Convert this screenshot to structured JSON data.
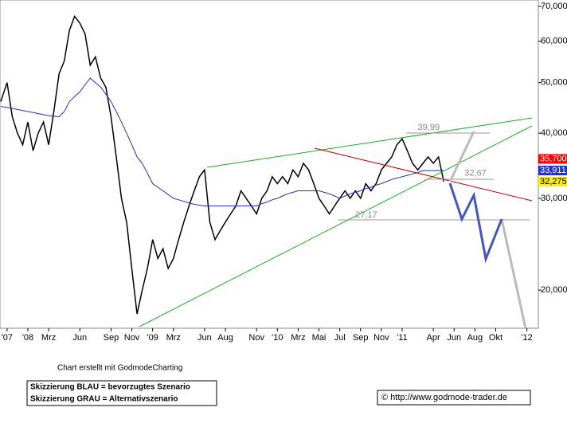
{
  "chart_data": {
    "type": "line",
    "log_scale": true,
    "x": [
      -2.6,
      -2,
      -1.5,
      -1,
      -0.5,
      0,
      0.5,
      1,
      1.5,
      2,
      2.5,
      3,
      3.5,
      4,
      4.5,
      5,
      5.5,
      6,
      6.5,
      7,
      7.5,
      8,
      8.5,
      9,
      9.5,
      10,
      10.5,
      11,
      11.5,
      12,
      12.5,
      13,
      13.5,
      14,
      14.5,
      15,
      15.5,
      16,
      16.5,
      17,
      17.5,
      18,
      18.5,
      19,
      19.5,
      20,
      20.5,
      21,
      21.5,
      22,
      22.5,
      23,
      23.5,
      24,
      24.5,
      25,
      25.5,
      26,
      26.5,
      27,
      27.5,
      28,
      28.5,
      29,
      29.5,
      30,
      30.5,
      31,
      31.5,
      32,
      32.5,
      33,
      33.5,
      34,
      34.5,
      35,
      35.5,
      36,
      36.5,
      37,
      37.5,
      38,
      38.5,
      39,
      39.5,
      40
    ],
    "series": [
      {
        "color": "#000000",
        "values": [
          46,
          50,
          43,
          40,
          38,
          42,
          37,
          40,
          42,
          38,
          44,
          52,
          55,
          63,
          67,
          65,
          62,
          54,
          56,
          51,
          49,
          43,
          36,
          30,
          27,
          22,
          18,
          20,
          22,
          25,
          23,
          24,
          22,
          23,
          25,
          27,
          29,
          31,
          33,
          34,
          27,
          25,
          26,
          27,
          28,
          29,
          31,
          30,
          29,
          28,
          30,
          31,
          33,
          32,
          33,
          32,
          34,
          33,
          35,
          34,
          32,
          30,
          29,
          28,
          29,
          30,
          31,
          30,
          31,
          30,
          32,
          31,
          32,
          34,
          35,
          36,
          38,
          39,
          37,
          35,
          34,
          35,
          36,
          35,
          36,
          32.3
        ]
      },
      {
        "color": "#2233aa",
        "values": [
          45,
          44.8,
          44.6,
          44.4,
          44.2,
          44,
          43.8,
          43.6,
          43.4,
          43.2,
          43.1,
          43,
          44,
          46,
          47,
          48,
          49.5,
          51,
          50,
          49,
          47.5,
          46,
          44,
          42,
          40,
          38,
          36,
          35,
          33.5,
          32,
          31.5,
          31,
          30.5,
          30,
          29.8,
          29.6,
          29.4,
          29.2,
          29.1,
          29,
          29,
          29,
          29,
          29,
          29,
          29,
          29,
          29,
          29,
          29,
          29.3,
          29.5,
          29.8,
          30,
          30.3,
          30.6,
          30.8,
          31,
          31,
          31,
          31,
          31,
          30.8,
          30.6,
          30.3,
          30,
          30.3,
          30.6,
          30.8,
          31,
          31.3,
          31.5,
          31.8,
          32,
          32.3,
          32.6,
          32.8,
          33,
          33.2,
          33.4,
          33.6,
          33.9,
          33.9,
          33.9,
          33.9,
          33.9
        ]
      }
    ],
    "xlim": [
      -2.68,
      49.1
    ],
    "xticks": [
      {
        "value": -2,
        "label": "'07"
      },
      {
        "value": 0,
        "label": "'08"
      },
      {
        "value": 2,
        "label": "Mrz"
      },
      {
        "value": 5,
        "label": "Jun"
      },
      {
        "value": 8,
        "label": "Sep"
      },
      {
        "value": 10,
        "label": "Nov"
      },
      {
        "value": 12,
        "label": "'09"
      },
      {
        "value": 14,
        "label": "Mrz"
      },
      {
        "value": 17,
        "label": "Jun"
      },
      {
        "value": 19,
        "label": "Aug"
      },
      {
        "value": 22,
        "label": "Nov"
      },
      {
        "value": 24,
        "label": "'10"
      },
      {
        "value": 26,
        "label": "Mrz"
      },
      {
        "value": 28,
        "label": "Mai"
      },
      {
        "value": 30,
        "label": "Jul"
      },
      {
        "value": 32,
        "label": "Sep"
      },
      {
        "value": 34,
        "label": "Nov"
      },
      {
        "value": 36,
        "label": "'11"
      },
      {
        "value": 39,
        "label": "Apr"
      },
      {
        "value": 41,
        "label": "Jun"
      },
      {
        "value": 43,
        "label": "Aug"
      },
      {
        "value": 45,
        "label": "Okt"
      },
      {
        "value": 48,
        "label": "'12"
      }
    ],
    "ylim": [
      16.9,
      72
    ],
    "yticks": [
      {
        "value": 20,
        "label": "20,000"
      },
      {
        "value": 30,
        "label": "30,000"
      },
      {
        "value": 40,
        "label": "40,000"
      },
      {
        "value": 50,
        "label": "50,000"
      },
      {
        "value": 60,
        "label": "60,000"
      },
      {
        "value": 70,
        "label": "70,000"
      }
    ],
    "annotations": [
      {
        "value": 39.99,
        "label": "39,99",
        "x": 37.5
      },
      {
        "value": 32.67,
        "label": "32,67",
        "x": 42
      },
      {
        "value": 27.17,
        "label": "27,17",
        "x": 31.5
      }
    ],
    "price_labels": [
      {
        "value": 35.7,
        "label": "35,700",
        "color": "#ff0000"
      },
      {
        "value": 33.911,
        "label": "33,911",
        "color": "#2233cc"
      },
      {
        "value": 32.275,
        "label": "32,275",
        "color": "#ffee00"
      }
    ],
    "footer": {
      "credit": "Chart erstellt mit GodmodeCharting",
      "blue": "Skizzierung BLAU = bevorzugtes Szenario",
      "grey": "Skizzierung GRAU = Alternativszenario",
      "url": "© http://www.godmode-trader.de"
    }
  }
}
